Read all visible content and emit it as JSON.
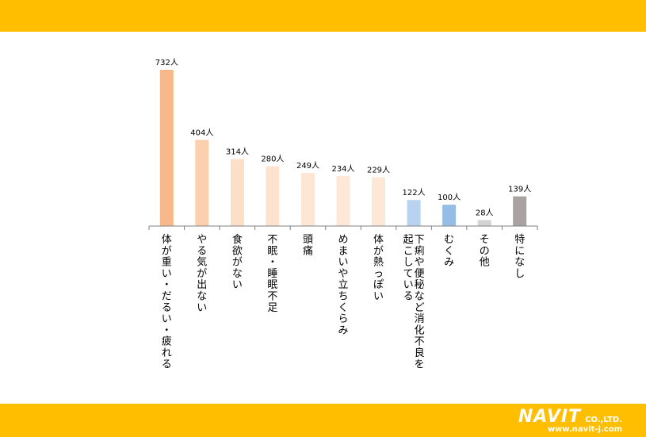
{
  "brand": {
    "name": "NAVIT",
    "suffix": "CO.,LTD.",
    "url": "www.navit-j.com"
  },
  "colors": {
    "band": "#FFBE00",
    "axis": "#808080",
    "label_text": "#000000"
  },
  "chart_data": {
    "type": "bar",
    "unit": "人",
    "categories": [
      "体が重い・だるい・疲れる",
      "やる気が出ない",
      "食欲がない",
      "不眠・睡眠不足",
      "頭痛",
      "めまいや立ちくらみ",
      "体が熱っぽい",
      "下痢や便秘など消化不良を起こしている",
      "むくみ",
      "その他",
      "特になし"
    ],
    "values": [
      732,
      404,
      314,
      280,
      249,
      234,
      229,
      122,
      100,
      28,
      139
    ],
    "bar_colors": [
      "#F7B88A",
      "#FAD0AE",
      "#FCDFC6",
      "#FDE3CE",
      "#FDE6D3",
      "#FDE8D7",
      "#FDE8D7",
      "#B8D3EF",
      "#96BDE6",
      "#D3D3D3",
      "#A8A2A2"
    ],
    "data_labels": [
      "732人",
      "404人",
      "314人",
      "280人",
      "249人",
      "234人",
      "229人",
      "122人",
      "100人",
      "28人",
      "139人"
    ],
    "ylim": [
      0,
      732
    ],
    "grid": false,
    "legend": "none"
  }
}
